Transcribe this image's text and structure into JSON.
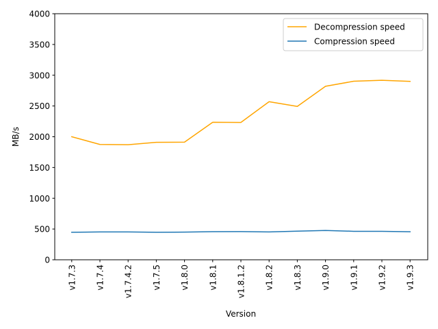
{
  "chart_data": {
    "type": "line",
    "title": "",
    "xlabel": "Version",
    "ylabel": "MB/s",
    "categories": [
      "v1.7.3",
      "v1.7.4",
      "v1.7.4.2",
      "v1.7.5",
      "v1.8.0",
      "v1.8.1",
      "v1.8.1.2",
      "v1.8.2",
      "v1.8.3",
      "v1.9.0",
      "v1.9.1",
      "v1.9.2",
      "v1.9.3"
    ],
    "ylim": [
      0,
      4000
    ],
    "yticks": [
      0,
      500,
      1000,
      1500,
      2000,
      2500,
      3000,
      3500,
      4000
    ],
    "grid": false,
    "legend_position": "top-right",
    "series": [
      {
        "name": "Decompression speed",
        "color": "#ffa500",
        "values": [
          2000,
          1875,
          1870,
          1910,
          1912,
          2235,
          2233,
          2570,
          2493,
          2820,
          2902,
          2918,
          2900
        ]
      },
      {
        "name": "Compression speed",
        "color": "#1f77b4",
        "values": [
          447,
          452,
          453,
          447,
          450,
          457,
          458,
          453,
          465,
          477,
          463,
          463,
          455
        ]
      }
    ]
  }
}
